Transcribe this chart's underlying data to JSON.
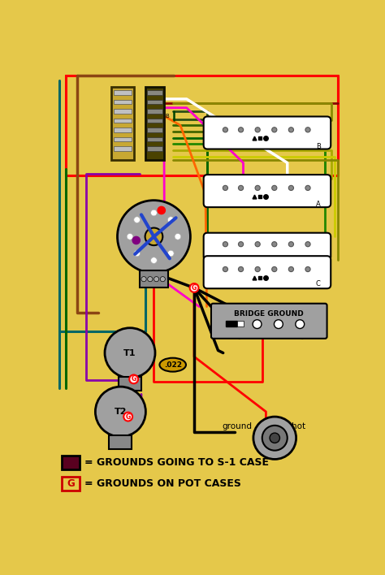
{
  "bg_color": "#E5C84A",
  "legend1_text": "= GROUNDS GOING TO S-1 CASE",
  "legend2_text": "= GROUNDS ON POT CASES",
  "legend1_color": "#5A0020",
  "legend2_border": "#CC0000",
  "legend2_letter": "G",
  "switch_body_color": "#C8A832",
  "switch_dark_color": "#3A3000",
  "contact_color": "#C0C0C0",
  "pickup_color": "white",
  "pot_color": "#A0A0A0",
  "pot_inner_color": "#C8A832",
  "cap_color": "#CC9900",
  "bridge_ground_color": "#A0A0A0",
  "jack_color": "#A0A0A0"
}
